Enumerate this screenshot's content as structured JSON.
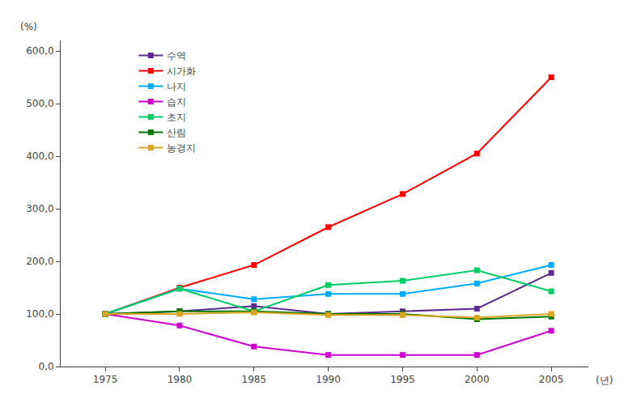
{
  "chart_data": {
    "type": "line",
    "x": [
      1975,
      1980,
      1985,
      1990,
      1995,
      2000,
      2005
    ],
    "series": [
      {
        "name": "수역",
        "color": "#5B2D8E",
        "marker": "square",
        "values": [
          100.0,
          105.0,
          115.0,
          100.0,
          105.0,
          110.0,
          178.0
        ]
      },
      {
        "name": "시가화",
        "color": "#FF0000",
        "marker": "square",
        "values": [
          100.0,
          150.0,
          193.0,
          265.0,
          328.0,
          405.0,
          550.0
        ]
      },
      {
        "name": "나지",
        "color": "#00AAFF",
        "marker": "square",
        "values": [
          100.0,
          148.0,
          128.0,
          138.0,
          138.0,
          158.0,
          193.0
        ]
      },
      {
        "name": "습지",
        "color": "#CC00CC",
        "marker": "square",
        "values": [
          100.0,
          78.0,
          38.0,
          22.0,
          22.0,
          22.0,
          68.0
        ]
      },
      {
        "name": "초지",
        "color": "#00CC66",
        "marker": "square",
        "values": [
          100.0,
          148.0,
          105.0,
          155.0,
          163.0,
          183.0,
          143.0
        ]
      },
      {
        "name": "산림",
        "color": "#007700",
        "marker": "square",
        "values": [
          100.0,
          105.0,
          105.0,
          100.0,
          100.0,
          90.0,
          95.0
        ]
      },
      {
        "name": "농경지",
        "color": "#DAA520",
        "marker": "square",
        "values": [
          100.0,
          100.0,
          103.0,
          98.0,
          98.0,
          93.0,
          100.0
        ]
      }
    ],
    "xlabel": "(년)",
    "ylabel": "(%)",
    "xlim": [
      1972,
      2007.5
    ],
    "xticks": [
      1975,
      1980,
      1985,
      1990,
      1995,
      2000,
      2005
    ],
    "ylim": [
      0.0,
      620.0
    ],
    "yticks": [
      {
        "value": 0.0,
        "label": "0,0"
      },
      {
        "value": 100.0,
        "label": "100,0"
      },
      {
        "value": 200.0,
        "label": "200,0"
      },
      {
        "value": 300.0,
        "label": "300,0"
      },
      {
        "value": 400.0,
        "label": "400,0"
      },
      {
        "value": 500.0,
        "label": "500,0"
      },
      {
        "value": 600.0,
        "label": "600,0"
      }
    ],
    "grid": false,
    "legend": "upper left"
  }
}
